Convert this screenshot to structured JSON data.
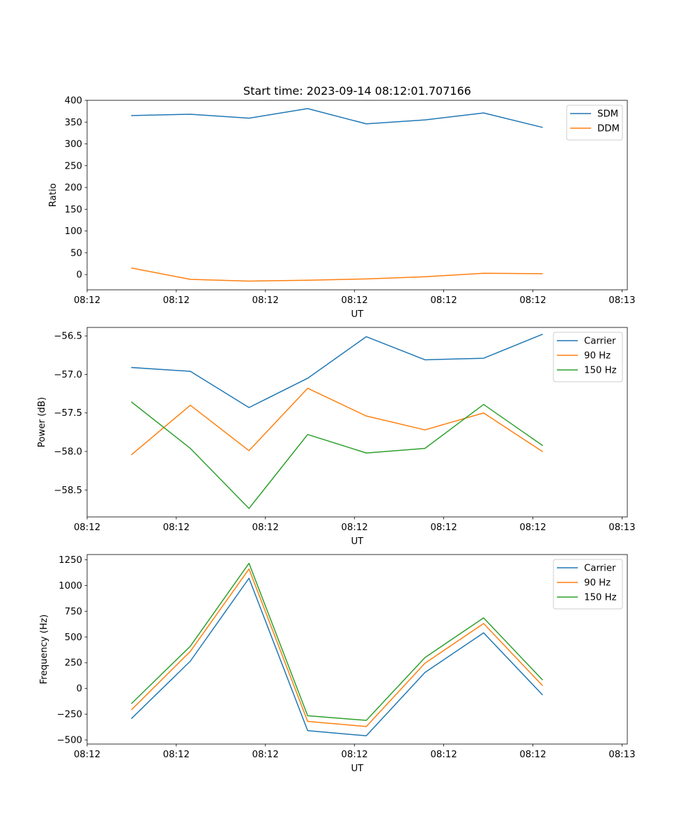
{
  "colors": {
    "c0": "#1f77b4",
    "c1": "#ff7f0e",
    "c2": "#2ca02c"
  },
  "chart_data": [
    {
      "type": "line",
      "title": "Start time: 2023-09-14 08:12:01.707166",
      "xlabel": "UT",
      "ylabel": "Ratio",
      "x": [
        0,
        1,
        2,
        3,
        4,
        5,
        6,
        7
      ],
      "xlim": [
        -0.76,
        8.45
      ],
      "x_ticks": [
        -0.76,
        0.76,
        2.28,
        3.8,
        5.32,
        6.84,
        8.36
      ],
      "x_tick_labels": [
        "08:12",
        "08:12",
        "08:12",
        "08:12",
        "08:12",
        "08:12",
        "08:13"
      ],
      "ylim": [
        -35,
        400
      ],
      "y_ticks": [
        0,
        50,
        100,
        150,
        200,
        250,
        300,
        350,
        400
      ],
      "y_tick_labels": [
        "0",
        "50",
        "100",
        "150",
        "200",
        "250",
        "300",
        "350",
        "400"
      ],
      "legend": "top-right",
      "series": [
        {
          "name": "SDM",
          "color": "#1f77b4",
          "values": [
            365,
            368,
            359,
            381,
            346,
            355,
            371,
            338
          ]
        },
        {
          "name": "DDM",
          "color": "#ff7f0e",
          "values": [
            15,
            -11,
            -15,
            -13,
            -10,
            -5,
            3,
            2
          ]
        }
      ]
    },
    {
      "type": "line",
      "title": "",
      "xlabel": "UT",
      "ylabel": "Power (dB)",
      "x": [
        0,
        1,
        2,
        3,
        4,
        5,
        6,
        7
      ],
      "xlim": [
        -0.76,
        8.45
      ],
      "x_ticks": [
        -0.76,
        0.76,
        2.28,
        3.8,
        5.32,
        6.84,
        8.36
      ],
      "x_tick_labels": [
        "08:12",
        "08:12",
        "08:12",
        "08:12",
        "08:12",
        "08:12",
        "08:13"
      ],
      "ylim": [
        -58.85,
        -56.39
      ],
      "y_ticks": [
        -58.5,
        -58.0,
        -57.5,
        -57.0,
        -56.5
      ],
      "y_tick_labels": [
        "−58.5",
        "−58.0",
        "−57.5",
        "−57.0",
        "−56.5"
      ],
      "legend": "top-right",
      "series": [
        {
          "name": "Carrier",
          "color": "#1f77b4",
          "values": [
            -56.91,
            -56.96,
            -57.43,
            -57.05,
            -56.51,
            -56.81,
            -56.79,
            -56.48
          ]
        },
        {
          "name": "90 Hz",
          "color": "#ff7f0e",
          "values": [
            -58.04,
            -57.4,
            -57.99,
            -57.18,
            -57.54,
            -57.72,
            -57.5,
            -58.0
          ]
        },
        {
          "name": "150 Hz",
          "color": "#2ca02c",
          "values": [
            -57.36,
            -57.96,
            -58.74,
            -57.78,
            -58.02,
            -57.96,
            -57.39,
            -57.92
          ]
        }
      ]
    },
    {
      "type": "line",
      "title": "",
      "xlabel": "UT",
      "ylabel": "Frequency (Hz)",
      "x": [
        0,
        1,
        2,
        3,
        4,
        5,
        6,
        7
      ],
      "xlim": [
        -0.76,
        8.45
      ],
      "x_ticks": [
        -0.76,
        0.76,
        2.28,
        3.8,
        5.32,
        6.84,
        8.36
      ],
      "x_tick_labels": [
        "08:12",
        "08:12",
        "08:12",
        "08:12",
        "08:12",
        "08:12",
        "08:13"
      ],
      "ylim": [
        -540,
        1300
      ],
      "y_ticks": [
        -500,
        -250,
        0,
        250,
        500,
        750,
        1000,
        1250
      ],
      "y_tick_labels": [
        "−500",
        "−250",
        "0",
        "250",
        "500",
        "750",
        "1000",
        "1250"
      ],
      "legend": "top-right",
      "series": [
        {
          "name": "Carrier",
          "color": "#1f77b4",
          "values": [
            -290,
            265,
            1070,
            -410,
            -460,
            155,
            540,
            -60
          ]
        },
        {
          "name": "90 Hz",
          "color": "#ff7f0e",
          "values": [
            -205,
            360,
            1160,
            -320,
            -370,
            245,
            630,
            30
          ]
        },
        {
          "name": "150 Hz",
          "color": "#2ca02c",
          "values": [
            -145,
            410,
            1215,
            -265,
            -310,
            300,
            685,
            85
          ]
        }
      ]
    }
  ]
}
